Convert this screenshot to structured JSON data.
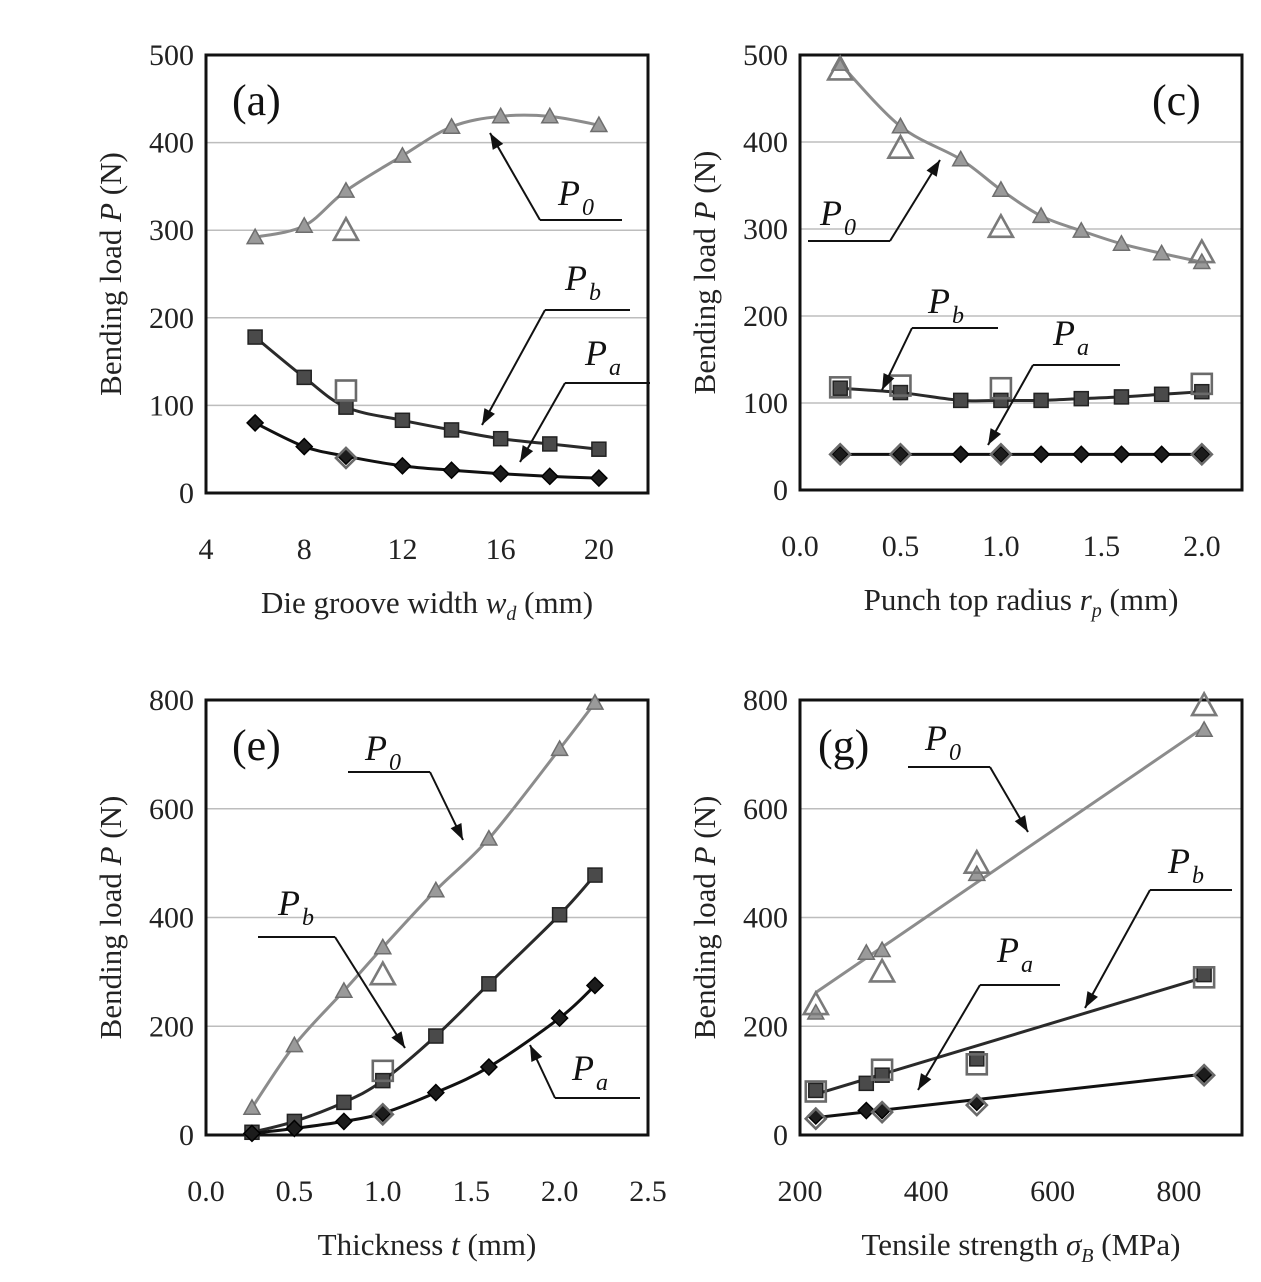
{
  "chart_data": [
    {
      "id": "a",
      "type": "line",
      "panel_label": "(a)",
      "xlabel": {
        "text": "Die groove width",
        "symbol": "w",
        "sub": "d",
        "unit": "(mm)"
      },
      "ylabel": {
        "text": "Bending load",
        "symbol": "P",
        "unit": "(N)"
      },
      "xlim": [
        4,
        22
      ],
      "ylim": [
        0,
        500
      ],
      "xticks": [
        4,
        8,
        12,
        16,
        20
      ],
      "xtick_labels": [
        "4",
        "8",
        "12",
        "16",
        "20"
      ],
      "yticks": [
        0,
        100,
        200,
        300,
        400,
        500
      ],
      "ytick_labels": [
        "0",
        "100",
        "200",
        "300",
        "400",
        "500"
      ],
      "grid": "horizontal",
      "series": [
        {
          "name": "P0",
          "label_main": "P",
          "label_sub": "0",
          "style": "gray-triangle",
          "x": [
            6,
            8,
            9.7,
            12,
            14,
            16,
            18,
            20
          ],
          "y": [
            292,
            305,
            345,
            385,
            418,
            430,
            430,
            420
          ],
          "exp_x": [
            9.7
          ],
          "exp_y": [
            300
          ]
        },
        {
          "name": "Pb",
          "label_main": "P",
          "label_sub": "b",
          "style": "dark-square",
          "x": [
            6,
            8,
            9.7,
            12,
            14,
            16,
            18,
            20
          ],
          "y": [
            178,
            132,
            98,
            83,
            72,
            62,
            56,
            50
          ],
          "exp_x": [
            9.7
          ],
          "exp_y": [
            117
          ]
        },
        {
          "name": "Pa",
          "label_main": "P",
          "label_sub": "a",
          "style": "black-diamond",
          "x": [
            6,
            8,
            9.7,
            12,
            14,
            16,
            18,
            20
          ],
          "y": [
            80,
            53,
            42,
            31,
            26,
            22,
            19,
            17
          ],
          "exp_x": [
            9.7
          ],
          "exp_y": [
            40
          ]
        }
      ]
    },
    {
      "id": "c",
      "type": "line",
      "panel_label": "(c)",
      "xlabel": {
        "text": "Punch top radius",
        "symbol": "r",
        "sub": "p",
        "unit": "(mm)"
      },
      "ylabel": {
        "text": "Bending load",
        "symbol": "P",
        "unit": "(N)"
      },
      "xlim": [
        0,
        2.2
      ],
      "ylim": [
        0,
        500
      ],
      "xticks": [
        0,
        0.5,
        1.0,
        1.5,
        2.0
      ],
      "xtick_labels": [
        "0.0",
        "0.5",
        "1.0",
        "1.5",
        "2.0"
      ],
      "yticks": [
        0,
        100,
        200,
        300,
        400,
        500
      ],
      "ytick_labels": [
        "0",
        "100",
        "200",
        "300",
        "400",
        "500"
      ],
      "grid": "horizontal",
      "series": [
        {
          "name": "P0",
          "label_main": "P",
          "label_sub": "0",
          "style": "gray-triangle",
          "x": [
            0.2,
            0.5,
            0.8,
            1.0,
            1.2,
            1.4,
            1.6,
            1.8,
            2.0
          ],
          "y": [
            490,
            418,
            380,
            345,
            315,
            298,
            283,
            272,
            262
          ],
          "exp_x": [
            0.2,
            0.5,
            1.0,
            2.0
          ],
          "exp_y": [
            483,
            393,
            302,
            273
          ]
        },
        {
          "name": "Pb",
          "label_main": "P",
          "label_sub": "b",
          "style": "dark-square",
          "x": [
            0.2,
            0.5,
            0.8,
            1.0,
            1.2,
            1.4,
            1.6,
            1.8,
            2.0
          ],
          "y": [
            117,
            112,
            103,
            103,
            103,
            105,
            107,
            110,
            113
          ],
          "exp_x": [
            0.2,
            0.5,
            1.0,
            2.0
          ],
          "exp_y": [
            118,
            120,
            117,
            122
          ]
        },
        {
          "name": "Pa",
          "label_main": "P",
          "label_sub": "a",
          "style": "black-diamond",
          "x": [
            0.2,
            0.5,
            0.8,
            1.0,
            1.2,
            1.4,
            1.6,
            1.8,
            2.0
          ],
          "y": [
            41,
            41,
            41,
            41,
            41,
            41,
            41,
            41,
            41
          ],
          "exp_x": [
            0.2,
            0.5,
            1.0,
            2.0
          ],
          "exp_y": [
            41,
            41,
            41,
            41
          ]
        }
      ]
    },
    {
      "id": "e",
      "type": "line",
      "panel_label": "(e)",
      "xlabel": {
        "text": "Thickness",
        "symbol": "t",
        "sub": "",
        "unit": "(mm)"
      },
      "ylabel": {
        "text": "Bending load",
        "symbol": "P",
        "unit": "(N)"
      },
      "xlim": [
        0,
        2.5
      ],
      "ylim": [
        0,
        800
      ],
      "xticks": [
        0,
        0.5,
        1.0,
        1.5,
        2.0,
        2.5
      ],
      "xtick_labels": [
        "0.0",
        "0.5",
        "1.0",
        "1.5",
        "2.0",
        "2.5"
      ],
      "yticks": [
        0,
        200,
        400,
        600,
        800
      ],
      "ytick_labels": [
        "0",
        "200",
        "400",
        "600",
        "800"
      ],
      "grid": "horizontal",
      "series": [
        {
          "name": "P0",
          "label_main": "P",
          "label_sub": "0",
          "style": "gray-triangle",
          "x": [
            0.26,
            0.5,
            0.78,
            1.0,
            1.3,
            1.6,
            2.0,
            2.2
          ],
          "y": [
            50,
            165,
            265,
            345,
            450,
            545,
            710,
            795
          ],
          "exp_x": [
            1.0
          ],
          "exp_y": [
            295
          ]
        },
        {
          "name": "Pb",
          "label_main": "P",
          "label_sub": "b",
          "style": "dark-square",
          "x": [
            0.26,
            0.5,
            0.78,
            1.0,
            1.3,
            1.6,
            2.0,
            2.2
          ],
          "y": [
            5,
            25,
            60,
            100,
            182,
            278,
            405,
            478
          ],
          "exp_x": [
            1.0
          ],
          "exp_y": [
            118
          ]
        },
        {
          "name": "Pa",
          "label_main": "P",
          "label_sub": "a",
          "style": "black-diamond",
          "x": [
            0.26,
            0.5,
            0.78,
            1.0,
            1.3,
            1.6,
            2.0,
            2.2
          ],
          "y": [
            3,
            12,
            25,
            40,
            78,
            125,
            215,
            275
          ],
          "exp_x": [
            1.0
          ],
          "exp_y": [
            38
          ]
        }
      ]
    },
    {
      "id": "g",
      "type": "line",
      "panel_label": "(g)",
      "xlabel": {
        "text": "Tensile strength",
        "symbol": "σ",
        "sub": "B",
        "unit": "(MPa)"
      },
      "ylabel": {
        "text": "Bending load",
        "symbol": "P",
        "unit": "(N)"
      },
      "xlim": [
        200,
        900
      ],
      "ylim": [
        0,
        800
      ],
      "xticks": [
        200,
        400,
        600,
        800
      ],
      "xtick_labels": [
        "200",
        "400",
        "600",
        "800"
      ],
      "yticks": [
        0,
        200,
        400,
        600,
        800
      ],
      "ytick_labels": [
        "0",
        "200",
        "400",
        "600",
        "800"
      ],
      "grid": "horizontal",
      "series": [
        {
          "name": "P0",
          "label_main": "P",
          "label_sub": "0",
          "style": "gray-triangle",
          "line": "fit",
          "x": [
            225,
            305,
            330,
            480,
            840
          ],
          "y": [
            225,
            335,
            340,
            480,
            745
          ],
          "fit_x": [
            225,
            840
          ],
          "fit_y": [
            262,
            750
          ],
          "exp_x": [
            225,
            330,
            480,
            840
          ],
          "exp_y": [
            240,
            300,
            500,
            790
          ]
        },
        {
          "name": "Pb",
          "label_main": "P",
          "label_sub": "b",
          "style": "dark-square",
          "line": "fit",
          "x": [
            225,
            305,
            330,
            480,
            840
          ],
          "y": [
            82,
            95,
            110,
            140,
            295
          ],
          "fit_x": [
            225,
            840
          ],
          "fit_y": [
            75,
            290
          ],
          "exp_x": [
            225,
            330,
            480,
            840
          ],
          "exp_y": [
            80,
            120,
            130,
            290
          ]
        },
        {
          "name": "Pa",
          "label_main": "P",
          "label_sub": "a",
          "style": "black-diamond",
          "line": "fit",
          "x": [
            225,
            305,
            330,
            480,
            840
          ],
          "y": [
            35,
            45,
            45,
            60,
            112
          ],
          "fit_x": [
            225,
            840
          ],
          "fit_y": [
            32,
            112
          ],
          "exp_x": [
            225,
            330,
            480,
            840
          ],
          "exp_y": [
            30,
            42,
            55,
            110
          ]
        }
      ]
    }
  ]
}
